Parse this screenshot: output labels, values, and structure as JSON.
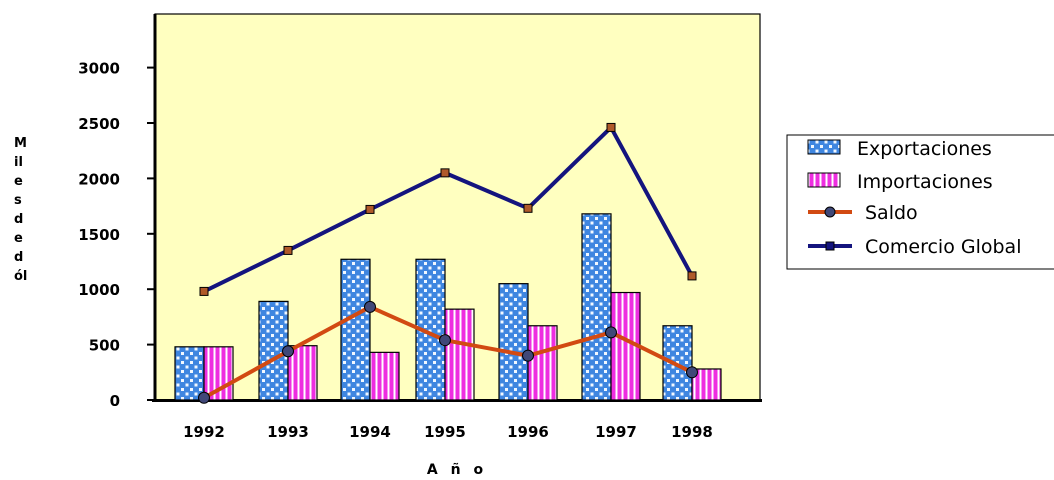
{
  "chart_data": {
    "type": "bar",
    "categories": [
      "1992",
      "1993",
      "1994",
      "1995",
      "1996",
      "1997",
      "1998"
    ],
    "series": [
      {
        "name": "Exportaciones",
        "type": "bar",
        "values": [
          480,
          890,
          1270,
          1270,
          1050,
          1680,
          670
        ]
      },
      {
        "name": "Importaciones",
        "type": "bar",
        "values": [
          480,
          490,
          430,
          820,
          670,
          970,
          280
        ]
      },
      {
        "name": "Saldo",
        "type": "line",
        "values": [
          20,
          440,
          840,
          540,
          400,
          610,
          250
        ]
      },
      {
        "name": "Comercio Global",
        "type": "line",
        "values": [
          980,
          1350,
          1720,
          2050,
          1730,
          2460,
          1120
        ]
      }
    ],
    "xlabel": "A ñ o",
    "ylabel_lines": [
      "M",
      "il",
      "e",
      "s",
      "d",
      "e",
      "d",
      "ól"
    ],
    "ylim": [
      0,
      3400
    ],
    "yticks": [
      0,
      500,
      1000,
      1500,
      2000,
      2500,
      3000
    ],
    "legend_position": "right",
    "grid": false,
    "colors": {
      "plot_background": "#FFFFC0",
      "export_fill": "#3F86E0",
      "export_dots": "#F2F8FF",
      "import_fill": "#EE2EE0",
      "import_stripes": "#FFFFFF",
      "saldo_line": "#D24A12",
      "saldo_marker": "#404878",
      "global_line": "#14147E",
      "global_marker": "#B05A2A"
    }
  }
}
